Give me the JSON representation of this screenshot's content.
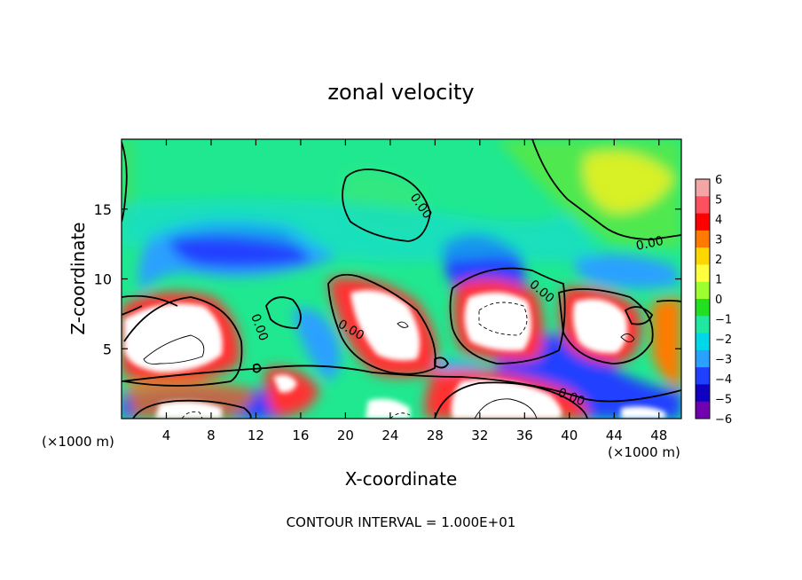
{
  "chart_data": {
    "type": "heatmap",
    "title": "zonal velocity",
    "xlabel": "X-coordinate",
    "ylabel": "Z-coordinate",
    "x_unit_label": "(×1000 m)",
    "x_unit_label_right": "(×1000 m)",
    "footer": "CONTOUR INTERVAL = 1.000E+01",
    "xlim": [
      0,
      50
    ],
    "ylim": [
      0,
      20
    ],
    "x_ticks": [
      4,
      8,
      12,
      16,
      20,
      24,
      28,
      32,
      36,
      40,
      44,
      48
    ],
    "y_ticks": [
      5,
      10,
      15
    ],
    "colorbar": {
      "levels": [
        6,
        5,
        4,
        3,
        2,
        1,
        0,
        -1,
        -2,
        -3,
        -4,
        -5,
        -6
      ],
      "colors": [
        "#f4a6a6",
        "#ff5060",
        "#ff0000",
        "#ff7a00",
        "#ffd700",
        "#ffff40",
        "#9cff30",
        "#20e020",
        "#20e8a0",
        "#00d8e8",
        "#2aa0ff",
        "#2040ff",
        "#1000c0",
        "#7000b0"
      ]
    },
    "contour_label": "0.00",
    "features": [
      {
        "kind": "jet",
        "sign": "negative",
        "x": [
          3,
          20
        ],
        "z": [
          10,
          13
        ],
        "value": -5
      },
      {
        "kind": "jet",
        "sign": "negative",
        "x": [
          28,
          34
        ],
        "z": [
          6,
          11
        ],
        "value": -5
      },
      {
        "kind": "jet",
        "sign": "positive",
        "x": [
          42,
          50
        ],
        "z": [
          14,
          19
        ],
        "value": 2
      },
      {
        "kind": "core",
        "sign": "positive",
        "x": [
          1,
          9
        ],
        "z": [
          3,
          8
        ],
        "value": 8
      },
      {
        "kind": "core",
        "sign": "positive",
        "x": [
          21,
          27
        ],
        "z": [
          4,
          9
        ],
        "value": 8
      },
      {
        "kind": "core",
        "sign": "positive",
        "x": [
          31,
          37
        ],
        "z": [
          5,
          9
        ],
        "value": 8
      },
      {
        "kind": "core",
        "sign": "positive",
        "x": [
          40,
          46
        ],
        "z": [
          5,
          8
        ],
        "value": 8
      },
      {
        "kind": "core",
        "sign": "positive",
        "x": [
          30,
          38
        ],
        "z": [
          0,
          3
        ],
        "value": 8
      },
      {
        "kind": "core",
        "sign": "positive",
        "x": [
          2,
          10
        ],
        "z": [
          0,
          1
        ],
        "value": 7
      }
    ]
  }
}
